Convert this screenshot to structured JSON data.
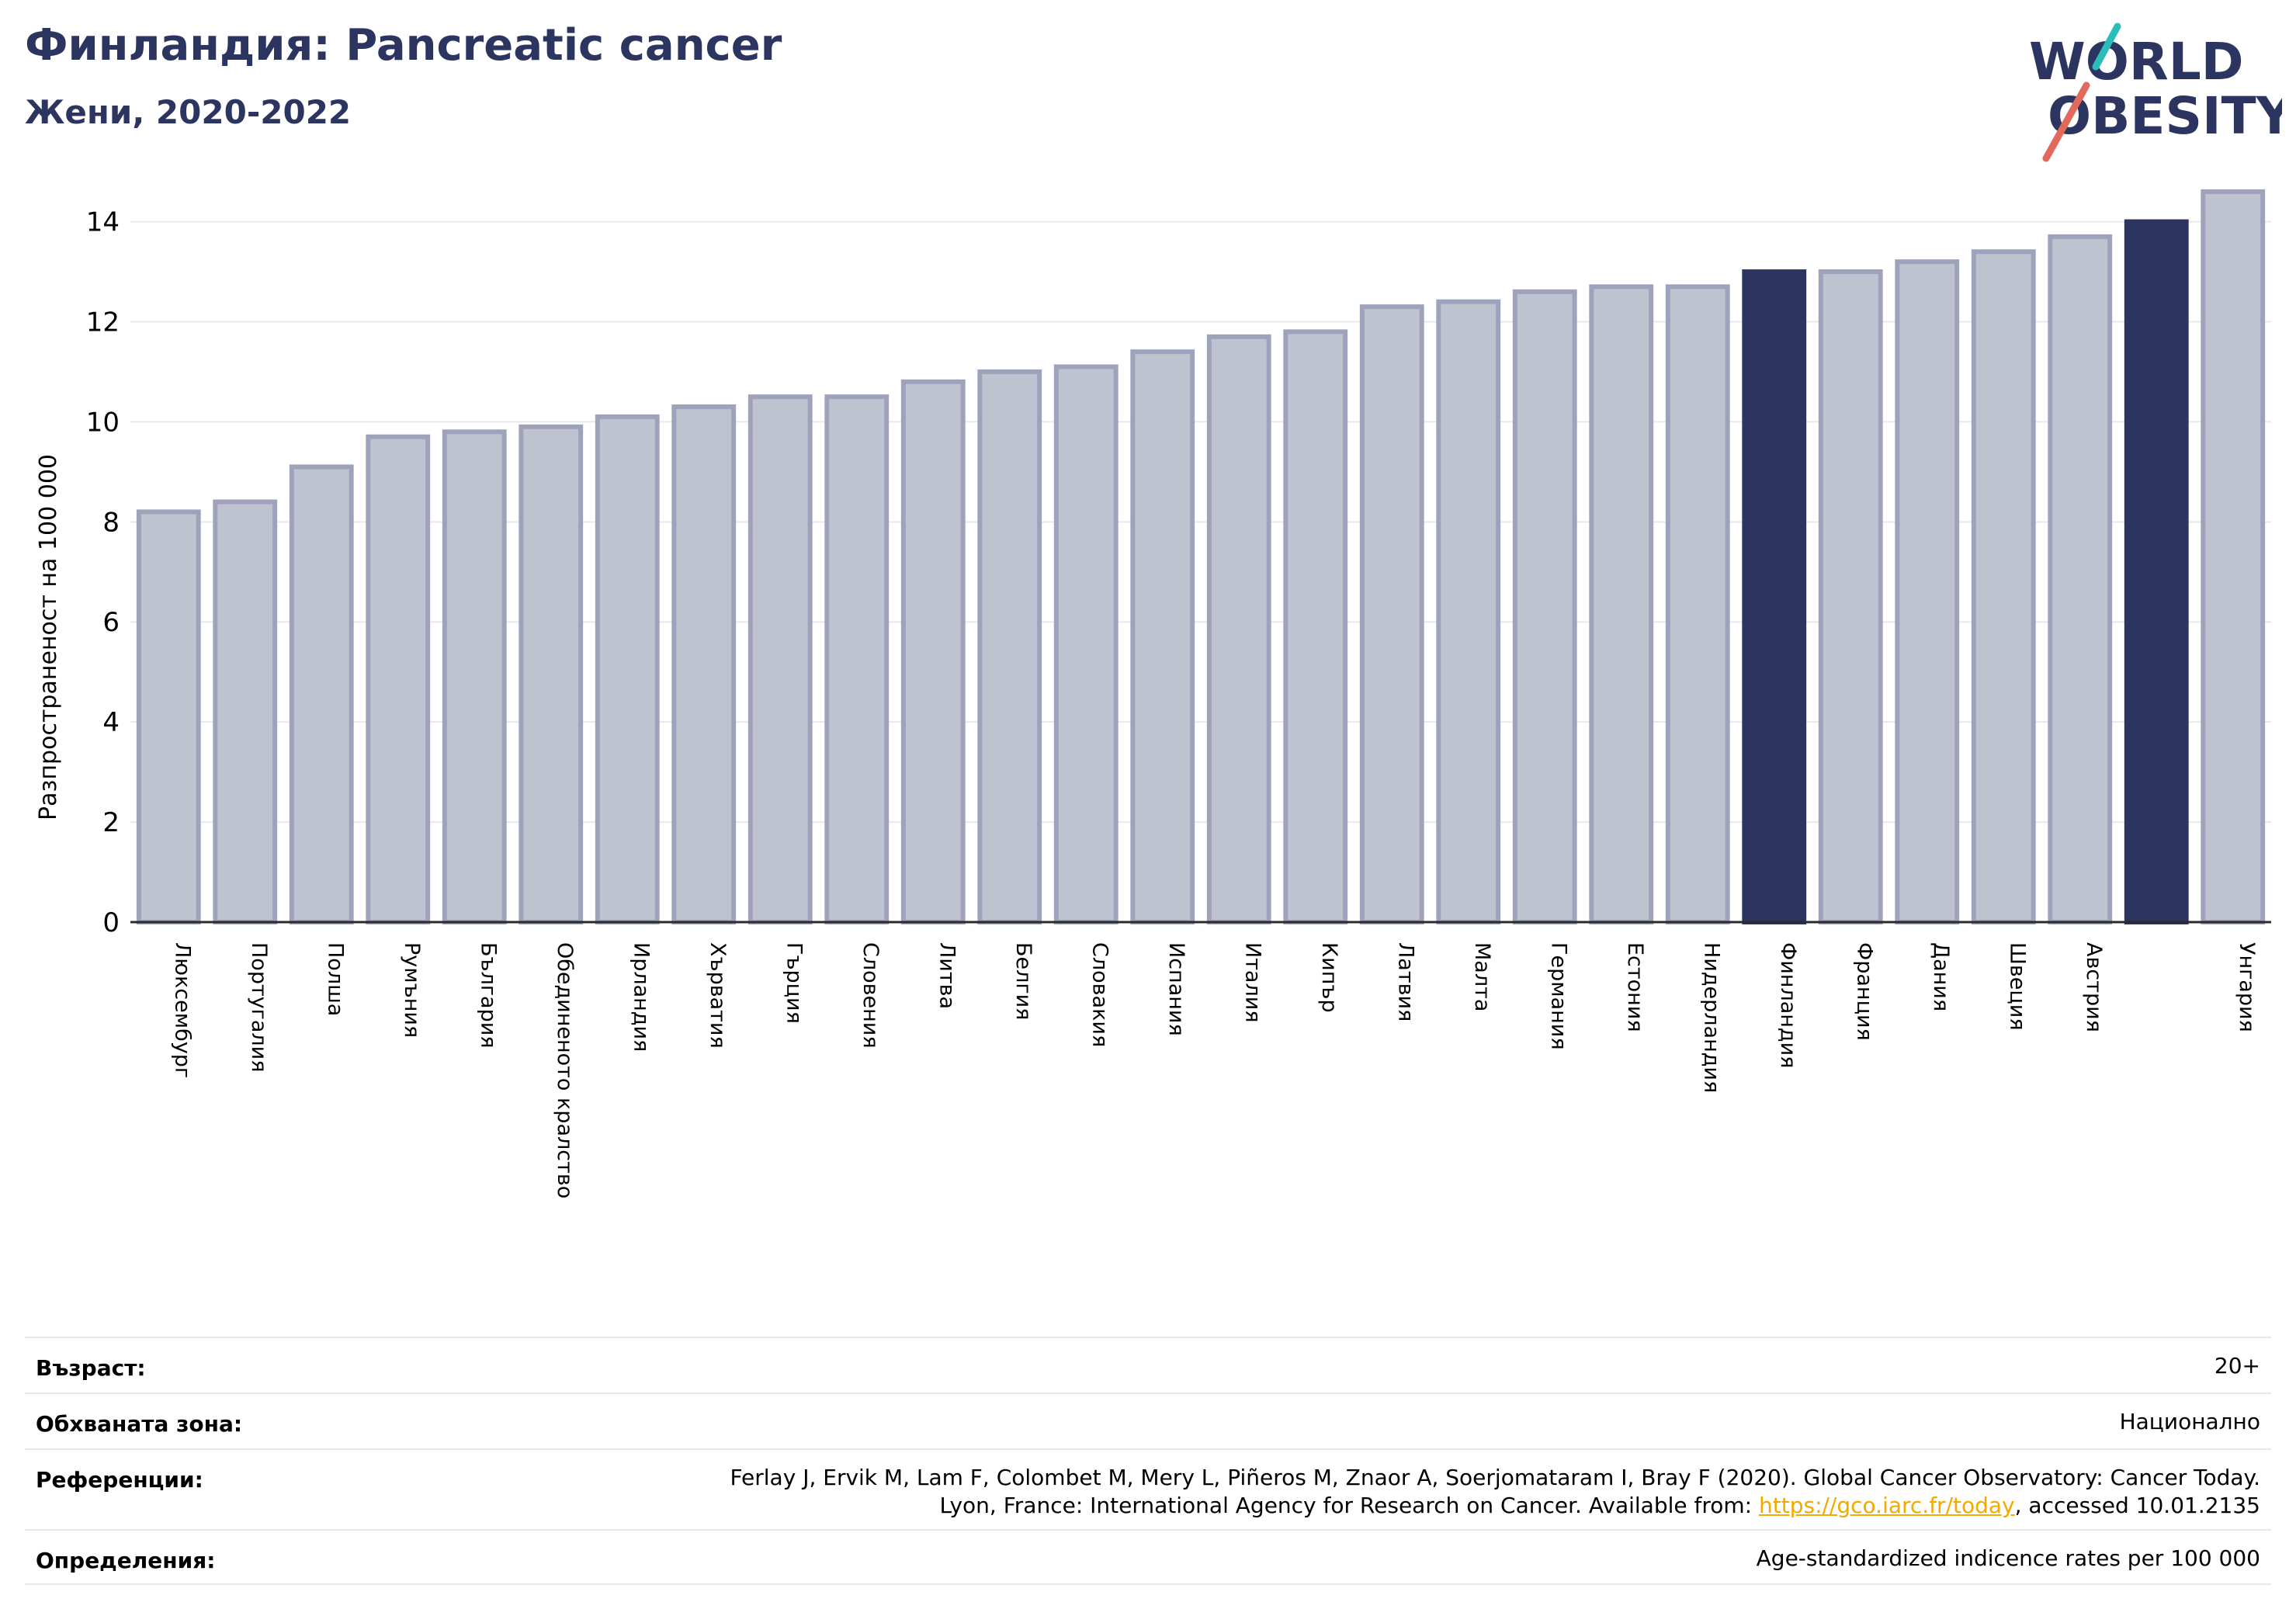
{
  "header": {
    "title": "Финландия: Pancreatic cancer",
    "subtitle": "Жени, 2020-2022"
  },
  "logo": {
    "line1": "WORLD",
    "line2": "OBESITY"
  },
  "colors": {
    "bar": "#bfc2cf",
    "bar_border": "#9ea3bb",
    "highlight": "#2b3560",
    "title": "#2b3560",
    "link": "#f2a900"
  },
  "chart_data": {
    "type": "bar",
    "ylabel": "Разпространеност  на 100 000",
    "ylim": [
      0,
      14.8
    ],
    "yticks": [
      0,
      2,
      4,
      6,
      8,
      10,
      12,
      14
    ],
    "grid": true,
    "categories": [
      "Люксембург",
      "Португалия",
      "Полша",
      "Румъния",
      "България",
      "Обединеното кралство",
      "Ирландия",
      "Хърватия",
      "Гърция",
      "Словения",
      "Литва",
      "Белгия",
      "Словакия",
      "Испания",
      "Италия",
      "Кипър",
      "Латвия",
      "Малта",
      "Германия",
      "Естония",
      "Нидерландия",
      "Финландия",
      "Франция",
      "Дания",
      "Швеция",
      "Австрия",
      "",
      "Унгария"
    ],
    "values": [
      8.2,
      8.4,
      9.1,
      9.7,
      9.8,
      9.9,
      10.1,
      10.3,
      10.5,
      10.5,
      10.8,
      11.0,
      11.1,
      11.4,
      11.7,
      11.8,
      12.3,
      12.4,
      12.6,
      12.7,
      12.7,
      13.0,
      13.0,
      13.2,
      13.4,
      13.7,
      14.0,
      14.6
    ],
    "highlighted": [
      21,
      26
    ]
  },
  "meta": {
    "age_label": "Възраст:",
    "age_value": "20+",
    "area_label": "Обхваната зона:",
    "area_value": "Национално",
    "refs_label": "Референции:",
    "refs_line1": "Ferlay J, Ervik M, Lam F, Colombet M, Mery L, Piñeros M, Znaor A, Soerjomataram I, Bray F (2020). Global Cancer Observatory: Cancer Today.",
    "refs_line2_prefix": "Lyon, France: International Agency for Research on Cancer. Available from: ",
    "refs_link": "https://gco.iarc.fr/today",
    "refs_line2_suffix": ", accessed 10.01.2135",
    "defs_label": "Определения:",
    "defs_value": "Age-standardized indicence rates per 100 000"
  }
}
